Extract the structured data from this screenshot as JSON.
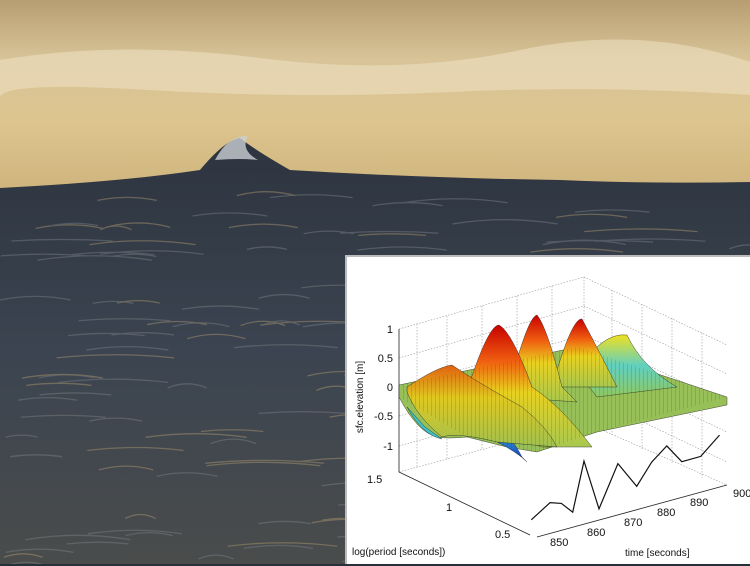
{
  "chart_data": {
    "type": "surface3d",
    "zlabel": "sfc.elevation [m]",
    "xlabel": "time [seconds]",
    "ylabel": "log(period [seconds])",
    "z_ticks": [
      "1",
      "0.5",
      "0",
      "-0.5",
      "-1"
    ],
    "time_ticks": [
      "850",
      "860",
      "870",
      "880",
      "890",
      "900"
    ],
    "period_ticks": [
      "1.5",
      "1",
      "0.5"
    ],
    "zlim": [
      -1.2,
      1
    ],
    "xlim": [
      845,
      900
    ],
    "ylim": [
      0.3,
      1.5
    ],
    "grid": true,
    "colormap": "jet",
    "peaks": [
      {
        "time": 852,
        "log_period": 1.1,
        "z": 0.4
      },
      {
        "time": 858,
        "log_period": 1.0,
        "z": 1.0
      },
      {
        "time": 866,
        "log_period": 1.0,
        "z": 1.1
      },
      {
        "time": 876,
        "log_period": 1.0,
        "z": 1.0
      },
      {
        "time": 886,
        "log_period": 1.0,
        "z": 0.6
      }
    ],
    "projected_series": {
      "time": [
        848,
        853,
        856,
        859,
        862,
        866,
        871,
        876,
        880,
        884,
        888,
        893,
        898
      ],
      "z": [
        -0.2,
        0.1,
        0.0,
        -0.3,
        0.9,
        -0.4,
        0.6,
        -0.1,
        0.4,
        0.7,
        0.2,
        0.2,
        0.6
      ]
    }
  },
  "colors": {
    "sky": "#d9c08a",
    "ocean": "#2c3440",
    "panel": "#ffffff"
  }
}
